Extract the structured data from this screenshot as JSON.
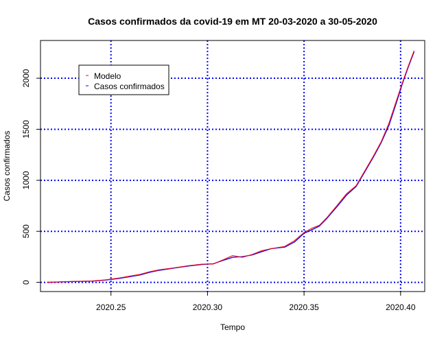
{
  "chart_data": {
    "type": "line",
    "title": "Casos confirmados da covid-19 em MT 20-03-2020 a 30-05-2020",
    "xlabel": "Tempo",
    "ylabel": "Casos confirmados",
    "xlim": [
      2020.2135,
      2020.4125
    ],
    "ylim": [
      -90,
      2370
    ],
    "x_ticks": [
      2020.25,
      2020.3,
      2020.35,
      2020.4
    ],
    "x_tick_labels": [
      "2020.25",
      "2020.30",
      "2020.35",
      "2020.40"
    ],
    "y_ticks": [
      0,
      500,
      1000,
      1500,
      2000
    ],
    "y_tick_labels": [
      "0",
      "500",
      "1000",
      "1500",
      "2000"
    ],
    "grid": true,
    "grid_color": "#0000ff",
    "legend_position": "top-left",
    "legend": [
      {
        "label": "Modelo",
        "color": "#ff0000"
      },
      {
        "label": "Casos confirmados",
        "color": "#0000ff"
      }
    ],
    "series": [
      {
        "name": "Modelo",
        "color": "#ff0000",
        "x": [
          2020.217,
          2020.225,
          2020.232,
          2020.24,
          2020.247,
          2020.254,
          2020.26,
          2020.265,
          2020.27,
          2020.275,
          2020.282,
          2020.29,
          2020.297,
          2020.303,
          2020.308,
          2020.313,
          2020.318,
          2020.323,
          2020.328,
          2020.333,
          2020.34,
          2020.345,
          2020.35,
          2020.354,
          2020.358,
          2020.362,
          2020.367,
          2020.372,
          2020.377,
          2020.382,
          2020.386,
          2020.39,
          2020.394,
          2020.398,
          2020.401,
          2020.404,
          2020.407
        ],
        "y": [
          0,
          6,
          10,
          12,
          24,
          42,
          62,
          78,
          104,
          123,
          140,
          163,
          178,
          180,
          220,
          262,
          245,
          272,
          310,
          330,
          352,
          408,
          488,
          530,
          560,
          638,
          752,
          868,
          948,
          1110,
          1240,
          1380,
          1560,
          1790,
          1960,
          2120,
          2270
        ]
      },
      {
        "name": "Casos confirmados",
        "color": "#0000ff",
        "x": [
          2020.217,
          2020.225,
          2020.232,
          2020.24,
          2020.247,
          2020.254,
          2020.26,
          2020.265,
          2020.27,
          2020.275,
          2020.282,
          2020.29,
          2020.297,
          2020.303,
          2020.308,
          2020.313,
          2020.318,
          2020.323,
          2020.328,
          2020.333,
          2020.34,
          2020.345,
          2020.35,
          2020.354,
          2020.358,
          2020.362,
          2020.367,
          2020.372,
          2020.377,
          2020.382,
          2020.386,
          2020.39,
          2020.394,
          2020.398,
          2020.401,
          2020.404,
          2020.407
        ],
        "y": [
          0,
          5,
          9,
          12,
          22,
          38,
          56,
          72,
          98,
          118,
          138,
          160,
          175,
          182,
          215,
          245,
          252,
          268,
          300,
          330,
          345,
          395,
          480,
          515,
          552,
          630,
          740,
          855,
          940,
          1100,
          1230,
          1370,
          1540,
          1770,
          1950,
          2110,
          2260
        ]
      }
    ]
  }
}
